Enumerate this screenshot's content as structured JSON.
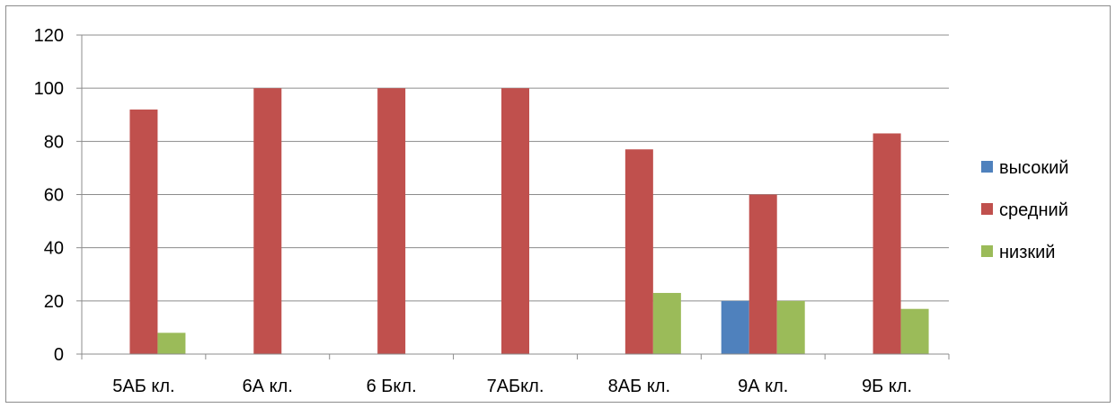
{
  "chart_data": {
    "type": "bar",
    "categories": [
      "5АБ кл.",
      "6А кл.",
      "6 Бкл.",
      "7АБкл.",
      "8АБ кл.",
      "9А кл.",
      "9Б кл."
    ],
    "series": [
      {
        "name": "высокий",
        "color": "#4f81bd",
        "values": [
          0,
          0,
          0,
          0,
          0,
          20,
          0
        ]
      },
      {
        "name": "средний",
        "color": "#c0504d",
        "values": [
          92,
          100,
          100,
          100,
          77,
          60,
          83
        ]
      },
      {
        "name": "низкий",
        "color": "#9bbb59",
        "values": [
          8,
          0,
          0,
          0,
          23,
          20,
          17
        ]
      }
    ],
    "ylim": [
      0,
      120
    ],
    "y_ticks": [
      "0",
      "20",
      "40",
      "60",
      "80",
      "100",
      "120"
    ],
    "grid": true,
    "legend_position": "right"
  }
}
